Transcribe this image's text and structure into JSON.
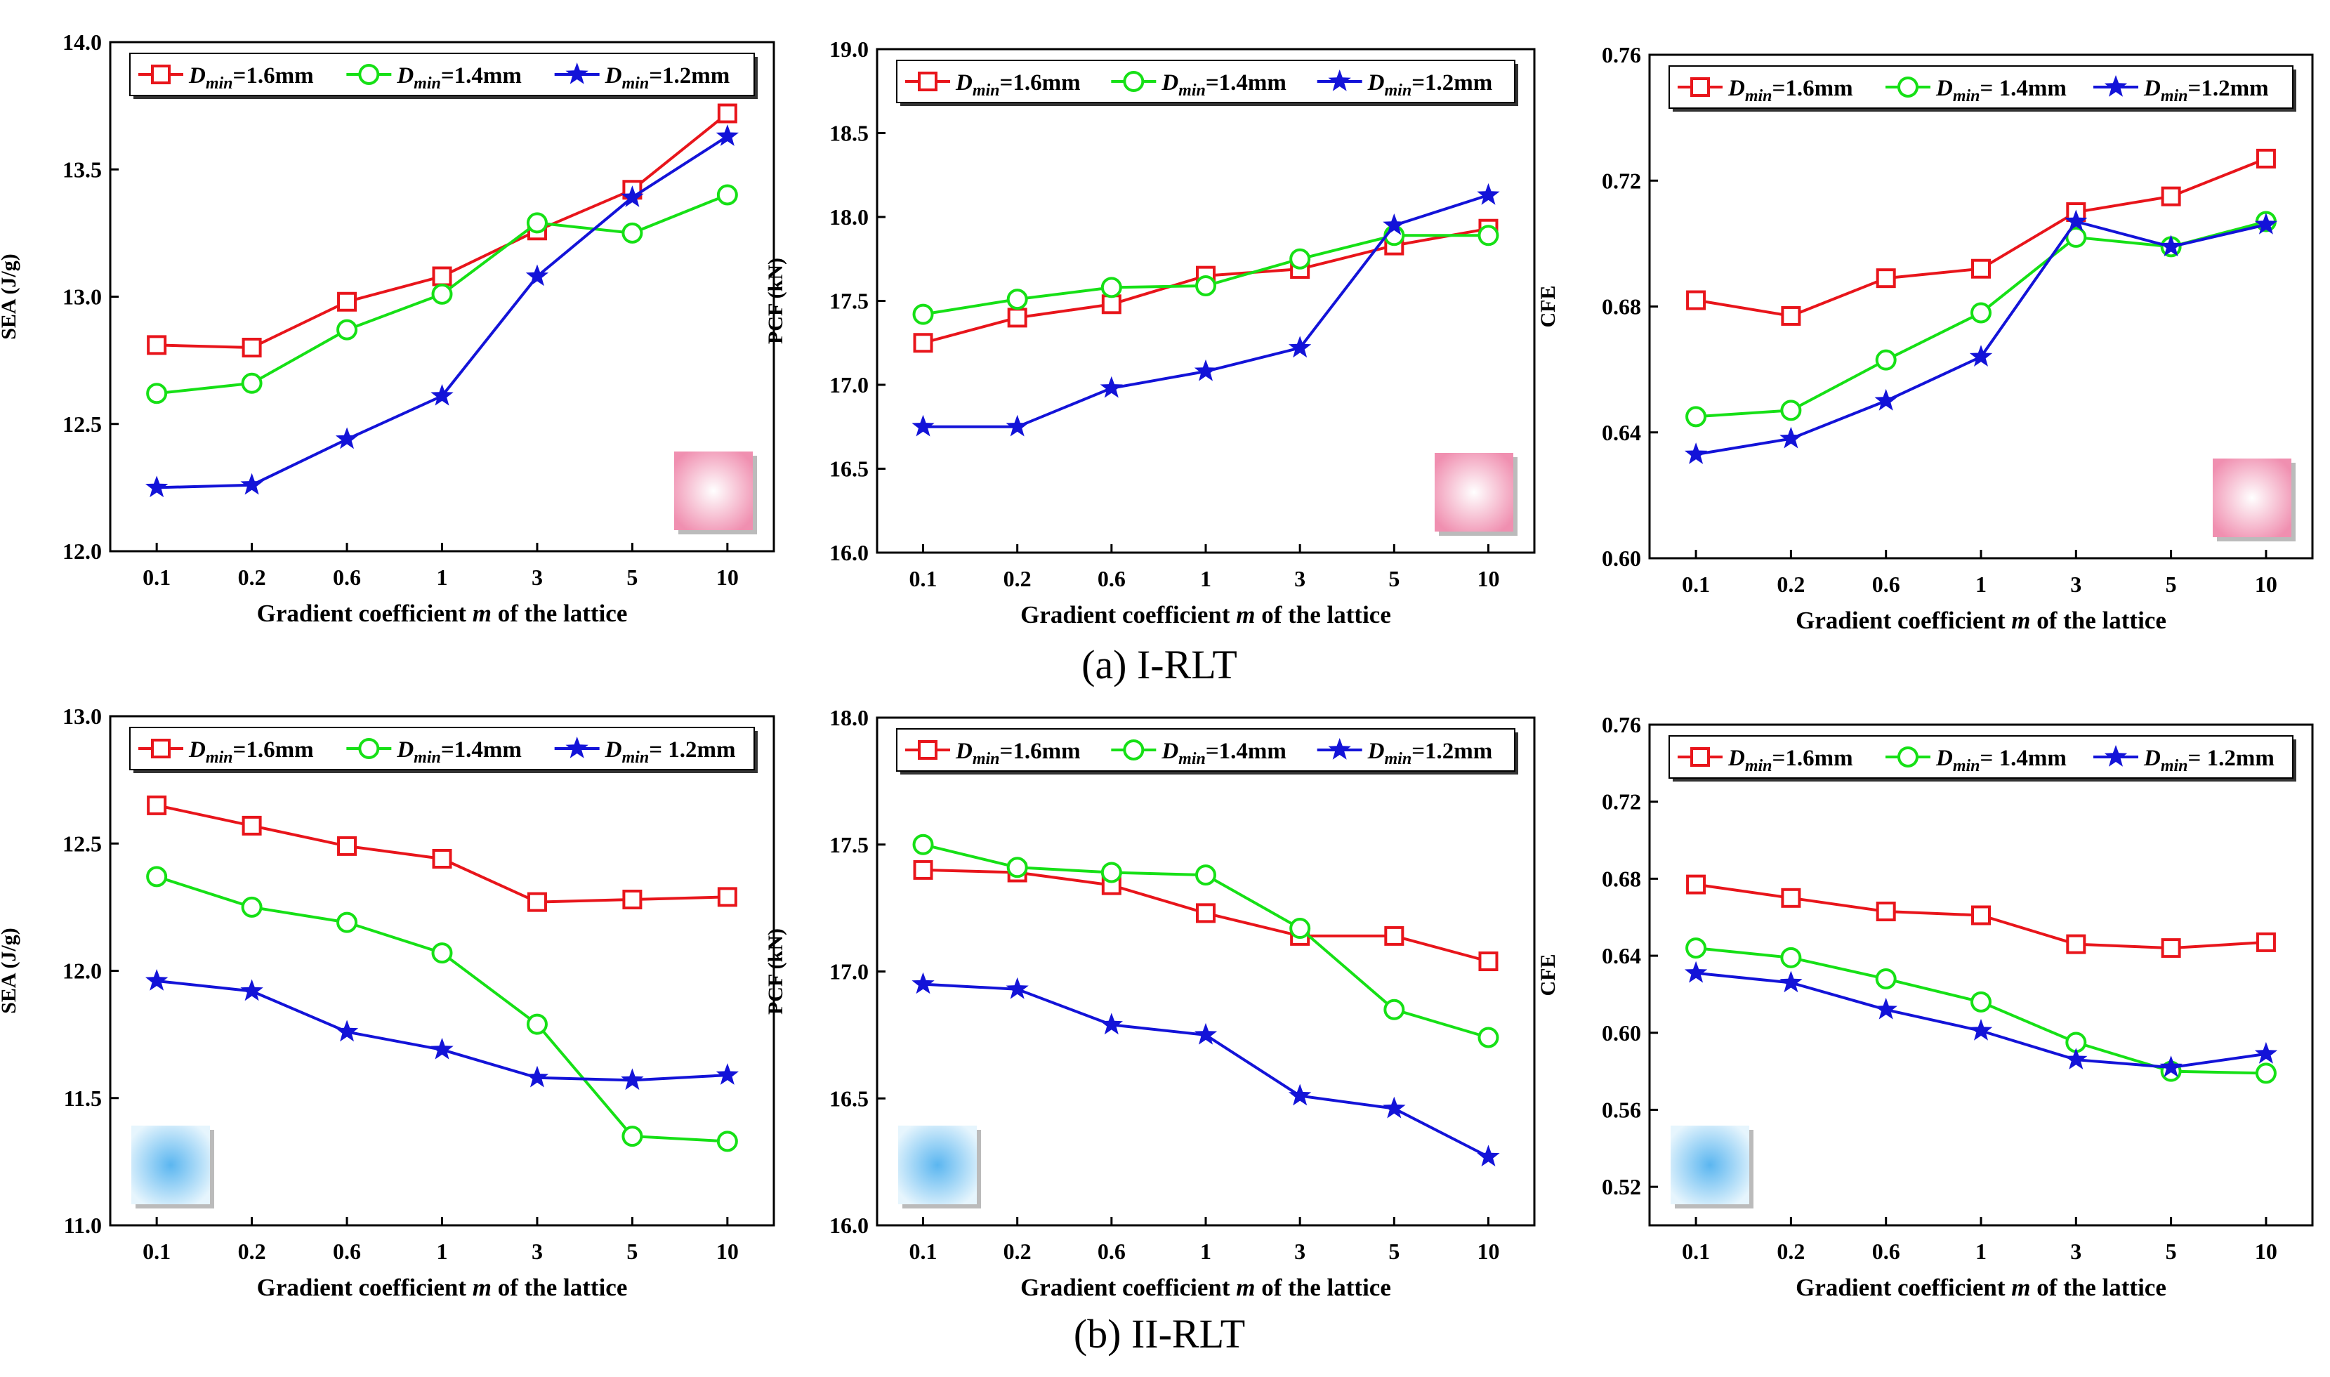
{
  "figure": {
    "caption_a": "(a) I-RLT",
    "caption_b": "(b) II-RLT",
    "series_colors": [
      "#e8151b",
      "#16e016",
      "#1313d8"
    ],
    "series_markers": [
      "square",
      "circle",
      "star"
    ]
  },
  "chart_data": [
    {
      "id": "a-sea",
      "type": "line",
      "categories": [
        "0.1",
        "0.2",
        "0.6",
        "1",
        "3",
        "5",
        "10"
      ],
      "xlabel_parts": [
        "Gradient coefficient ",
        "m",
        " of the lattice"
      ],
      "ylabel": "SEA (J/g)",
      "ylim": [
        12.0,
        14.0
      ],
      "yticks": [
        "12.0",
        "12.5",
        "13.0",
        "13.5",
        "14.0"
      ],
      "series": [
        {
          "name": "Dmin=1.6mm",
          "legend_value": "=1.6mm",
          "values": [
            12.81,
            12.8,
            12.98,
            13.08,
            13.26,
            13.42,
            13.72
          ]
        },
        {
          "name": "Dmin=1.4mm",
          "legend_value": "=1.4mm",
          "values": [
            12.62,
            12.66,
            12.87,
            13.01,
            13.29,
            13.25,
            13.4
          ]
        },
        {
          "name": "Dmin=1.2mm",
          "legend_value": "=1.2mm",
          "values": [
            12.25,
            12.26,
            12.44,
            12.61,
            13.08,
            13.39,
            13.63
          ]
        }
      ],
      "swatch": {
        "color": "#f2a2bc",
        "position": "bottom-right"
      }
    },
    {
      "id": "a-pcf",
      "type": "line",
      "categories": [
        "0.1",
        "0.2",
        "0.6",
        "1",
        "3",
        "5",
        "10"
      ],
      "xlabel_parts": [
        "Gradient coefficient ",
        "m",
        " of the lattice"
      ],
      "ylabel": "PCF (kN)",
      "ylim": [
        16.0,
        19.0
      ],
      "yticks": [
        "16.0",
        "16.5",
        "17.0",
        "17.5",
        "18.0",
        "18.5",
        "19.0"
      ],
      "series": [
        {
          "name": "Dmin=1.6mm",
          "legend_value": "=1.6mm",
          "values": [
            17.25,
            17.4,
            17.48,
            17.65,
            17.69,
            17.83,
            17.93
          ]
        },
        {
          "name": "Dmin=1.4mm",
          "legend_value": "=1.4mm",
          "values": [
            17.42,
            17.51,
            17.58,
            17.59,
            17.75,
            17.89,
            17.89
          ]
        },
        {
          "name": "Dmin=1.2mm",
          "legend_value": "=1.2mm",
          "values": [
            16.75,
            16.75,
            16.98,
            17.08,
            17.22,
            17.95,
            18.13
          ]
        }
      ],
      "swatch": {
        "color": "#f2a2bc",
        "position": "bottom-right"
      }
    },
    {
      "id": "a-cfe",
      "type": "line",
      "categories": [
        "0.1",
        "0.2",
        "0.6",
        "1",
        "3",
        "5",
        "10"
      ],
      "xlabel_parts": [
        "Gradient coefficient ",
        "m",
        " of the lattice"
      ],
      "ylabel": "CFE",
      "ylim": [
        0.6,
        0.76
      ],
      "yticks": [
        "0.60",
        "0.64",
        "0.68",
        "0.72",
        "0.76"
      ],
      "series": [
        {
          "name": "Dmin=1.6mm",
          "legend_value": "=1.6mm",
          "values": [
            0.682,
            0.677,
            0.689,
            0.692,
            0.71,
            0.715,
            0.727
          ]
        },
        {
          "name": "Dmin=1.4mm",
          "legend_value": "= 1.4mm",
          "values": [
            0.645,
            0.647,
            0.663,
            0.678,
            0.702,
            0.699,
            0.707
          ]
        },
        {
          "name": "Dmin=1.2mm",
          "legend_value": "=1.2mm",
          "values": [
            0.633,
            0.638,
            0.65,
            0.664,
            0.707,
            0.699,
            0.706
          ]
        }
      ],
      "swatch": {
        "color": "#f2a2bc",
        "position": "bottom-right"
      }
    },
    {
      "id": "b-sea",
      "type": "line",
      "categories": [
        "0.1",
        "0.2",
        "0.6",
        "1",
        "3",
        "5",
        "10"
      ],
      "xlabel_parts": [
        "Gradient coefficient ",
        "m",
        " of the lattice"
      ],
      "ylabel": "SEA (J/g)",
      "ylim": [
        11.0,
        13.0
      ],
      "yticks": [
        "11.0",
        "11.5",
        "12.0",
        "12.5",
        "13.0"
      ],
      "series": [
        {
          "name": "Dmin=1.6mm",
          "legend_value": "=1.6mm",
          "values": [
            12.65,
            12.57,
            12.49,
            12.44,
            12.27,
            12.28,
            12.29
          ]
        },
        {
          "name": "Dmin=1.4mm",
          "legend_value": "=1.4mm",
          "values": [
            12.37,
            12.25,
            12.19,
            12.07,
            11.79,
            11.35,
            11.33
          ]
        },
        {
          "name": "Dmin=1.2mm",
          "legend_value": "= 1.2mm",
          "values": [
            11.96,
            11.92,
            11.76,
            11.69,
            11.58,
            11.57,
            11.59
          ]
        }
      ],
      "swatch": {
        "color": "#8fd0f2",
        "position": "bottom-left"
      }
    },
    {
      "id": "b-pcf",
      "type": "line",
      "categories": [
        "0.1",
        "0.2",
        "0.6",
        "1",
        "3",
        "5",
        "10"
      ],
      "xlabel_parts": [
        "Gradient coefficient ",
        "m",
        " of the lattice"
      ],
      "ylabel": "PCF (kN)",
      "ylim": [
        16.0,
        18.0
      ],
      "yticks": [
        "16.0",
        "16.5",
        "17.0",
        "17.5",
        "18.0"
      ],
      "series": [
        {
          "name": "Dmin=1.6mm",
          "legend_value": "=1.6mm",
          "values": [
            17.4,
            17.39,
            17.34,
            17.23,
            17.14,
            17.14,
            17.04
          ]
        },
        {
          "name": "Dmin=1.4mm",
          "legend_value": "=1.4mm",
          "values": [
            17.5,
            17.41,
            17.39,
            17.38,
            17.17,
            16.85,
            16.74
          ]
        },
        {
          "name": "Dmin=1.2mm",
          "legend_value": "=1.2mm",
          "values": [
            16.95,
            16.93,
            16.79,
            16.75,
            16.51,
            16.46,
            16.27
          ]
        }
      ],
      "swatch": {
        "color": "#8fd0f2",
        "position": "bottom-left"
      }
    },
    {
      "id": "b-cfe",
      "type": "line",
      "categories": [
        "0.1",
        "0.2",
        "0.6",
        "1",
        "3",
        "5",
        "10"
      ],
      "xlabel_parts": [
        "Gradient coefficient ",
        "m",
        " of the lattice"
      ],
      "ylabel": "CFE",
      "ylim": [
        0.5,
        0.76
      ],
      "yticks": [
        "0.52",
        "0.56",
        "0.60",
        "0.64",
        "0.68",
        "0.72",
        "0.76"
      ],
      "series": [
        {
          "name": "Dmin=1.6mm",
          "legend_value": "=1.6mm",
          "values": [
            0.677,
            0.67,
            0.663,
            0.661,
            0.646,
            0.644,
            0.647
          ]
        },
        {
          "name": "Dmin=1.4mm",
          "legend_value": "= 1.4mm",
          "values": [
            0.644,
            0.639,
            0.628,
            0.616,
            0.595,
            0.58,
            0.579
          ]
        },
        {
          "name": "Dmin=1.2mm",
          "legend_value": "= 1.2mm",
          "values": [
            0.631,
            0.626,
            0.612,
            0.601,
            0.586,
            0.582,
            0.589
          ]
        }
      ],
      "swatch": {
        "color": "#8fd0f2",
        "position": "bottom-left"
      }
    }
  ]
}
